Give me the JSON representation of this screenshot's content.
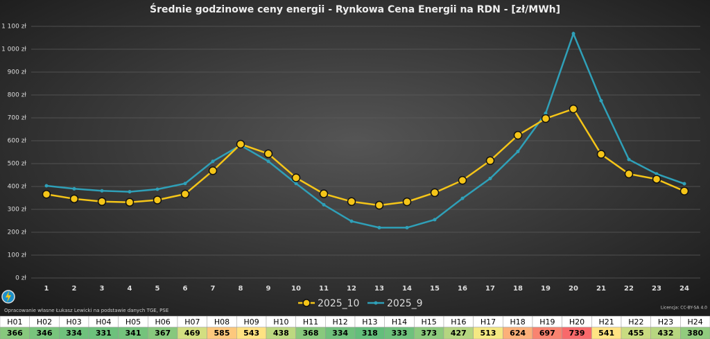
{
  "chart_data": {
    "type": "line",
    "title": "Średnie godzinowe ceny energii - Rynkowa Cena Energii na RDN - [zł/MWh]",
    "categories": [
      "1",
      "2",
      "3",
      "4",
      "5",
      "6",
      "7",
      "8",
      "9",
      "10",
      "11",
      "12",
      "13",
      "14",
      "15",
      "16",
      "17",
      "18",
      "19",
      "20",
      "21",
      "22",
      "23",
      "24"
    ],
    "series": [
      {
        "name": "2025_10",
        "color": "#f5c518",
        "values": [
          366,
          346,
          334,
          331,
          341,
          367,
          469,
          585,
          543,
          438,
          368,
          334,
          318,
          333,
          373,
          427,
          513,
          624,
          697,
          739,
          541,
          455,
          432,
          380
        ]
      },
      {
        "name": "2025_9",
        "color": "#2fa0b8",
        "values": [
          403,
          390,
          381,
          377,
          388,
          413,
          510,
          580,
          510,
          413,
          320,
          248,
          220,
          220,
          255,
          348,
          435,
          553,
          720,
          1068,
          775,
          518,
          455,
          412
        ]
      }
    ],
    "ylim": [
      0,
      1100
    ],
    "yticks": [
      {
        "value": 0,
        "label": "0 zł"
      },
      {
        "value": 100,
        "label": "100 zł"
      },
      {
        "value": 200,
        "label": "200 zł"
      },
      {
        "value": 300,
        "label": "300 zł"
      },
      {
        "value": 400,
        "label": "400 zł"
      },
      {
        "value": 500,
        "label": "500 zł"
      },
      {
        "value": 600,
        "label": "600 zł"
      },
      {
        "value": 700,
        "label": "700 zł"
      },
      {
        "value": 800,
        "label": "800 zł"
      },
      {
        "value": 900,
        "label": "900 zł"
      },
      {
        "value": 1000,
        "label": "1 000 zł"
      },
      {
        "value": 1100,
        "label": "1 100 zł"
      }
    ],
    "grid": true,
    "legend": "bottom",
    "source": "Opracowanie własne Łukasz Lewicki na podstawie danych TGE, PSE",
    "license": "Licencja: CC-BY-SA 4.0",
    "table_headers": [
      "H01",
      "H02",
      "H03",
      "H04",
      "H05",
      "H06",
      "H07",
      "H08",
      "H09",
      "H10",
      "H11",
      "H12",
      "H13",
      "H14",
      "H15",
      "H16",
      "H17",
      "H18",
      "H19",
      "H20",
      "H21",
      "H22",
      "H23",
      "H24"
    ]
  }
}
